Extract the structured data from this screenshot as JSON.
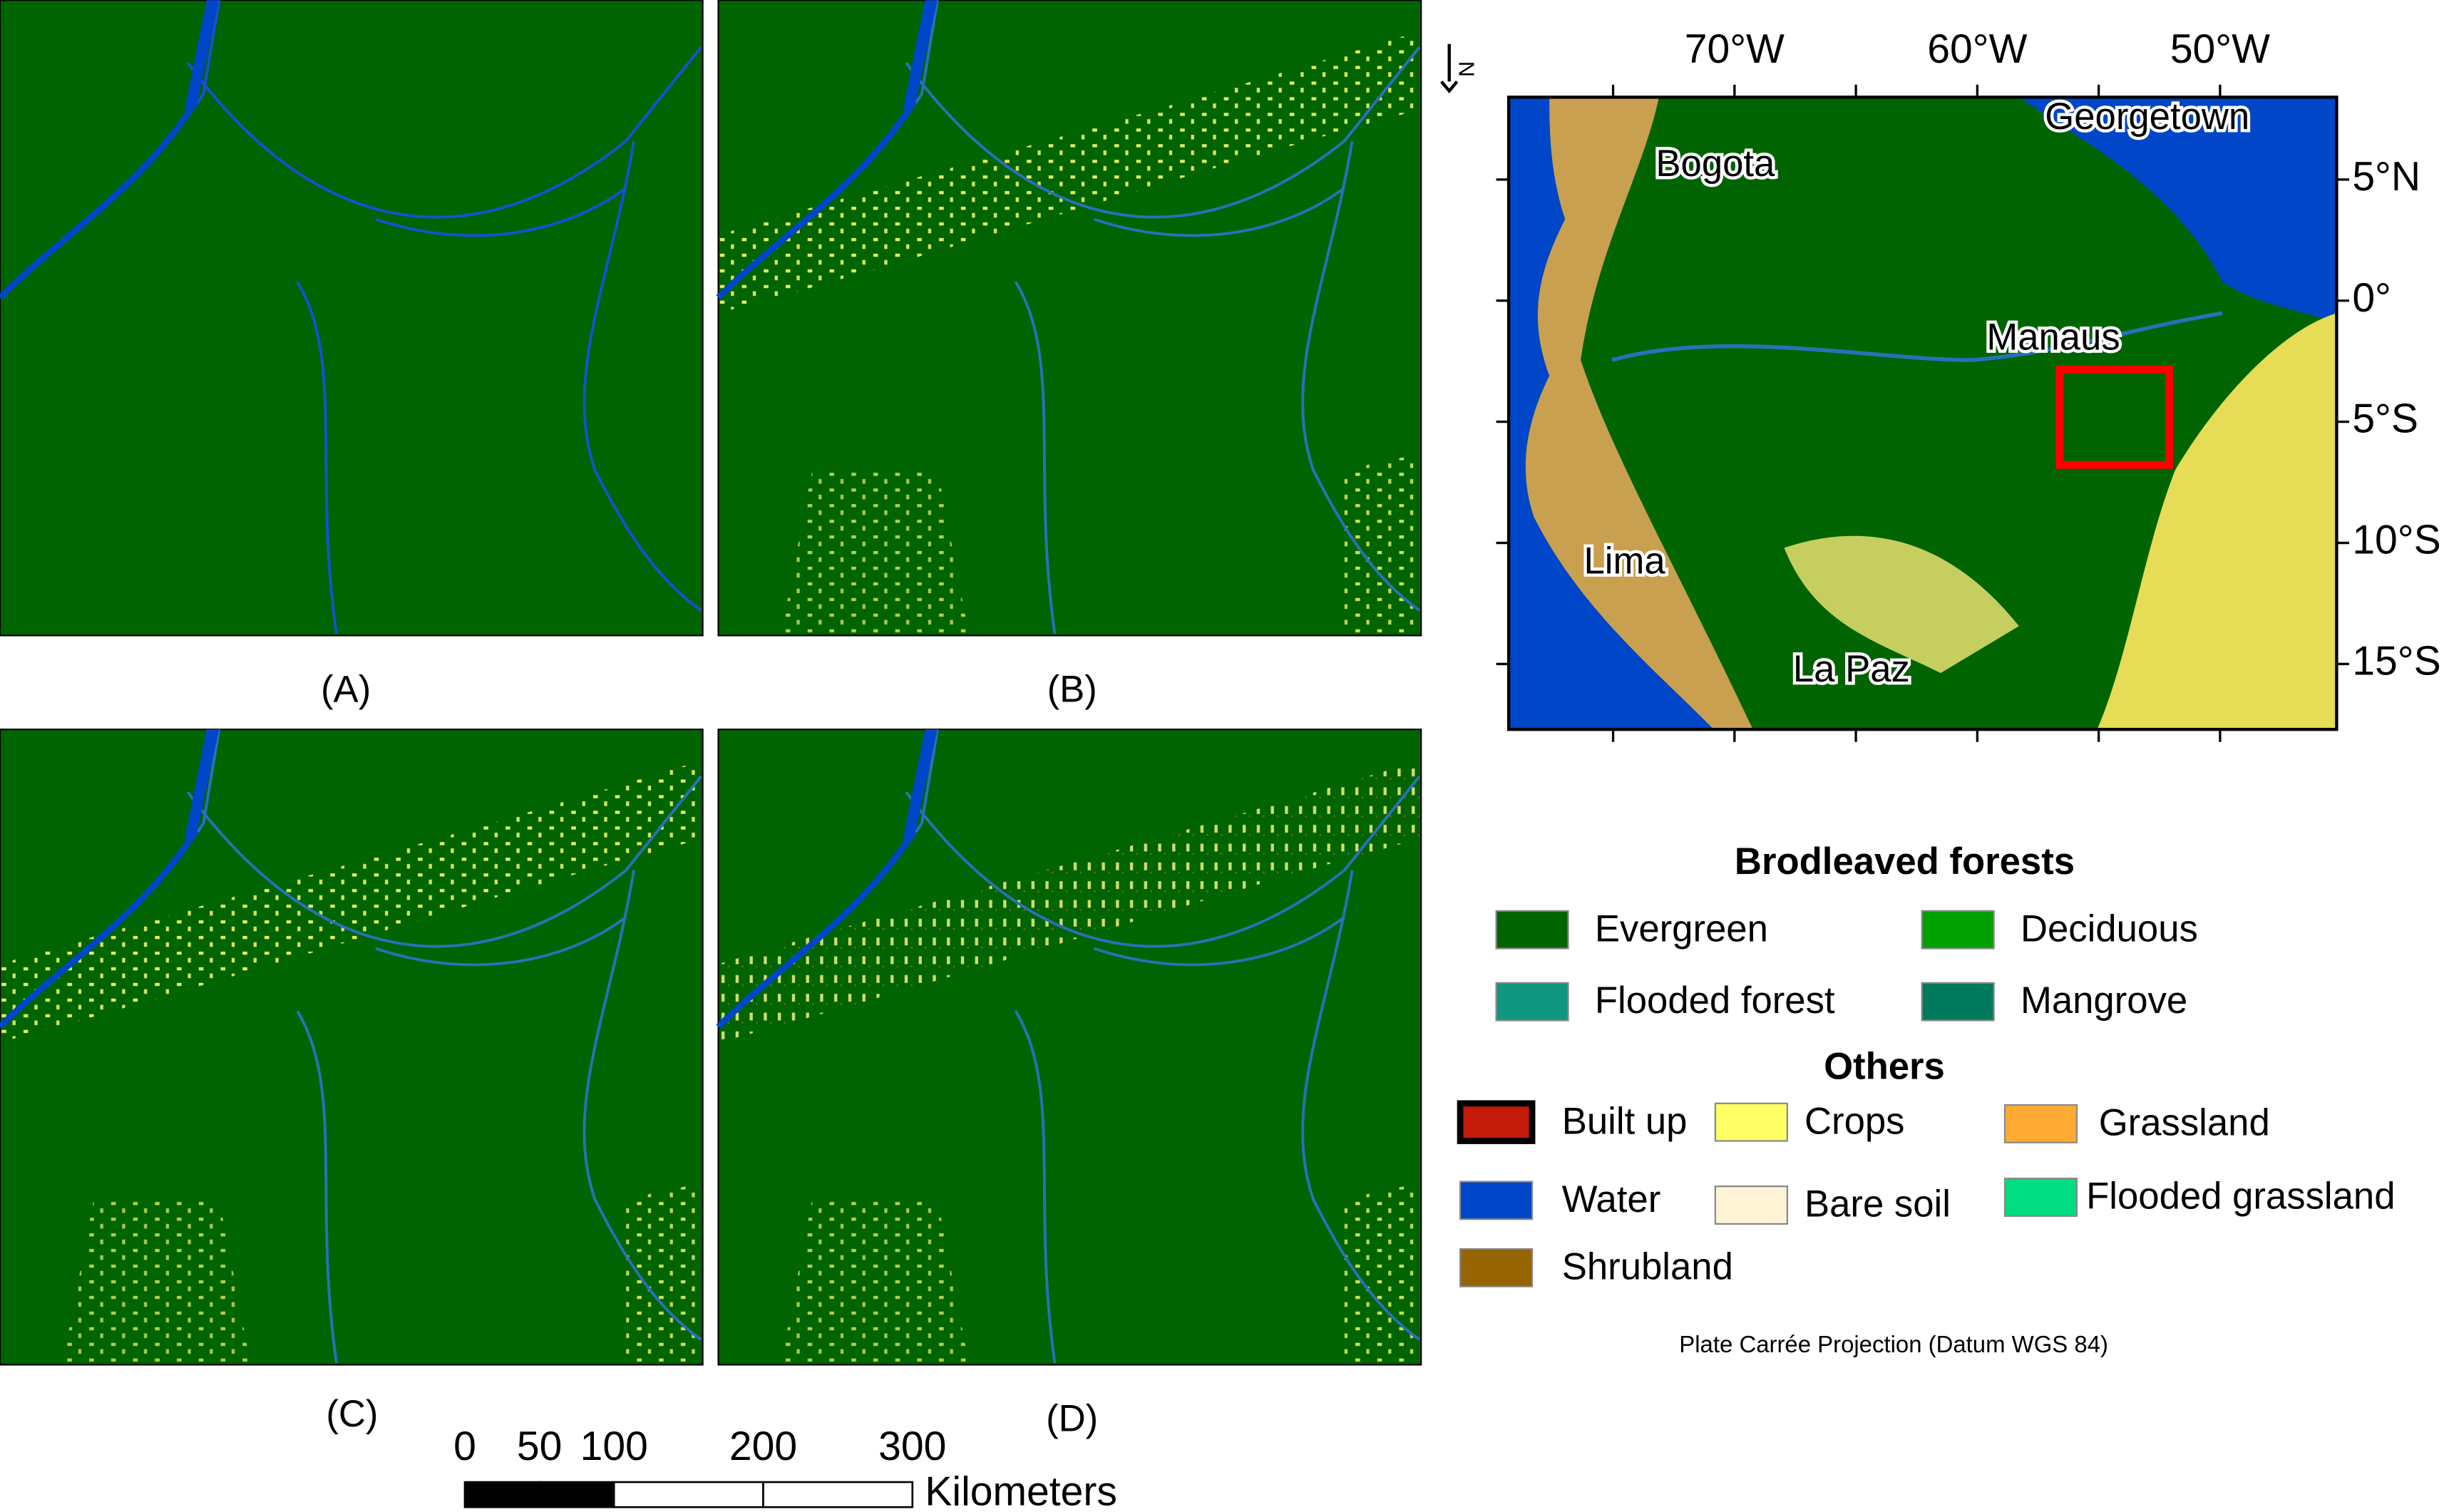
{
  "panels": [
    {
      "label": "(A)"
    },
    {
      "label": "(B)"
    },
    {
      "label": "(C)"
    },
    {
      "label": "(D)"
    }
  ],
  "scalebar": {
    "ticks": [
      0,
      50,
      100,
      200,
      300
    ],
    "unit": "Kilometers"
  },
  "north": "N",
  "locator_map": {
    "lon_lim": [
      -79.3,
      -45.2
    ],
    "lat_lim": [
      8.4,
      -17.7
    ],
    "lon_ticks": [
      -75,
      -70,
      -65,
      -60,
      -55,
      -50
    ],
    "lon_labels": [
      {
        "value": -70,
        "label": "70°W"
      },
      {
        "value": -60,
        "label": "60°W"
      },
      {
        "value": -50,
        "label": "50°W"
      }
    ],
    "lat_ticks": [
      {
        "value": 5,
        "label": "5°N"
      },
      {
        "value": 0,
        "label": "0°"
      },
      {
        "value": -5,
        "label": "5°S"
      },
      {
        "value": -10,
        "label": "10°S"
      },
      {
        "value": -15,
        "label": "15°S"
      }
    ],
    "cities": [
      "Georgetown",
      "Bogota",
      "Manaus",
      "Lima",
      "La Paz"
    ]
  },
  "legend": {
    "broadleaved": {
      "title": "Brodleaved forests",
      "items": [
        {
          "label": "Evergreen",
          "color": "#006400"
        },
        {
          "label": "Deciduous",
          "color": "#00a000"
        },
        {
          "label": "Flooded forest",
          "color": "#11967f"
        },
        {
          "label": "Mangrove",
          "color": "#007a5c"
        }
      ]
    },
    "others": {
      "title": "Others",
      "items": [
        {
          "label": "Built up",
          "color": "#c41a0a"
        },
        {
          "label": "Crops",
          "color": "#ffff66"
        },
        {
          "label": "Grassland",
          "color": "#ffaa33"
        },
        {
          "label": "Water",
          "color": "#0046c8"
        },
        {
          "label": "Bare soil",
          "color": "#fff5d6"
        },
        {
          "label": "Flooded grassland",
          "color": "#00dc82"
        },
        {
          "label": "Shrubland",
          "color": "#966400"
        }
      ]
    }
  },
  "projection": "Plate Carrée Projection (Datum WGS 84)"
}
